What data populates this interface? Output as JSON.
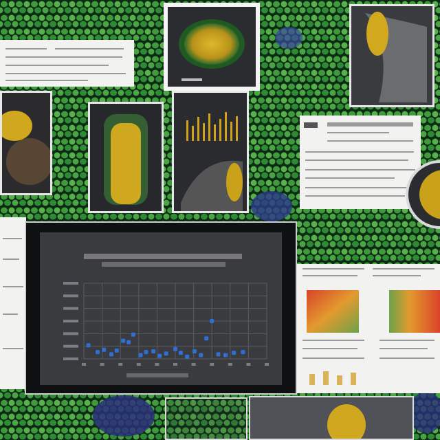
{
  "image": {
    "description": "",
    "colors": {
      "green_cells": "#3f9a3c",
      "cell_border": "#0d2a14",
      "yellow": "#c9a21a",
      "dark_panel": "#1d1f22",
      "paper": "#f2f2f0",
      "blue_points": "#2f6fd6",
      "heat_red": "#d9432a",
      "heat_orange": "#e39a2e"
    }
  },
  "chart_data": {
    "type": "scatter",
    "title": "",
    "xlabel": "",
    "ylabel": "",
    "xlim": [
      0,
      20
    ],
    "ylim": [
      0,
      10
    ],
    "grid": true,
    "points": [
      [
        0.5,
        1.8
      ],
      [
        1.5,
        0.9
      ],
      [
        2.2,
        1.2
      ],
      [
        3.0,
        0.6
      ],
      [
        3.6,
        1.1
      ],
      [
        4.3,
        2.4
      ],
      [
        4.9,
        2.2
      ],
      [
        5.4,
        3.2
      ],
      [
        6.2,
        0.5
      ],
      [
        6.8,
        0.9
      ],
      [
        7.6,
        1.0
      ],
      [
        8.3,
        0.4
      ],
      [
        9.0,
        0.7
      ],
      [
        10.0,
        1.3
      ],
      [
        10.6,
        0.8
      ],
      [
        11.3,
        0.3
      ],
      [
        12.1,
        1.0
      ],
      [
        12.8,
        0.5
      ],
      [
        13.4,
        2.7
      ],
      [
        14.0,
        5.0
      ],
      [
        14.7,
        0.6
      ],
      [
        15.5,
        0.5
      ],
      [
        16.4,
        0.8
      ],
      [
        17.4,
        0.9
      ]
    ]
  }
}
